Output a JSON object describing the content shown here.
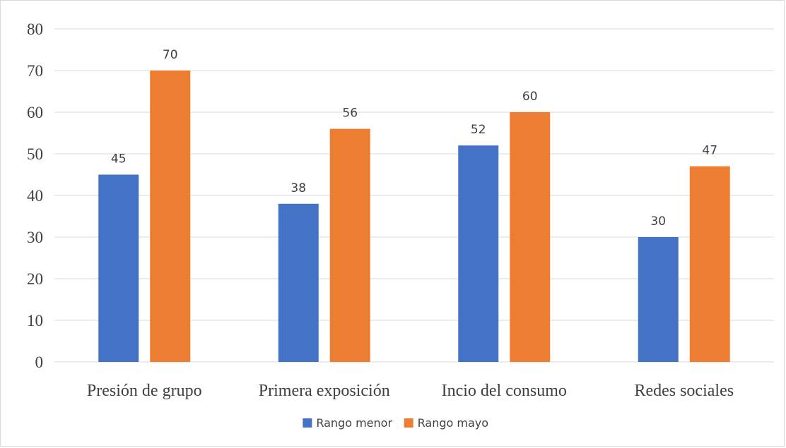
{
  "chart_data": {
    "type": "bar",
    "title": "",
    "xlabel": "",
    "ylabel": "",
    "categories": [
      "Presión de grupo",
      "Primera exposición",
      "Incio del consumo",
      "Redes sociales"
    ],
    "series": [
      {
        "name": "Rango menor",
        "color": "#4472C4",
        "values": [
          45,
          38,
          52,
          30
        ]
      },
      {
        "name": "Rango mayo",
        "color": "#ED7D31",
        "values": [
          70,
          56,
          60,
          47
        ]
      }
    ],
    "ylim": [
      0,
      80
    ],
    "yticks": [
      0,
      10,
      20,
      30,
      40,
      50,
      60,
      70,
      80
    ],
    "grid": true,
    "legend_position": "bottom",
    "data_labels": true
  }
}
